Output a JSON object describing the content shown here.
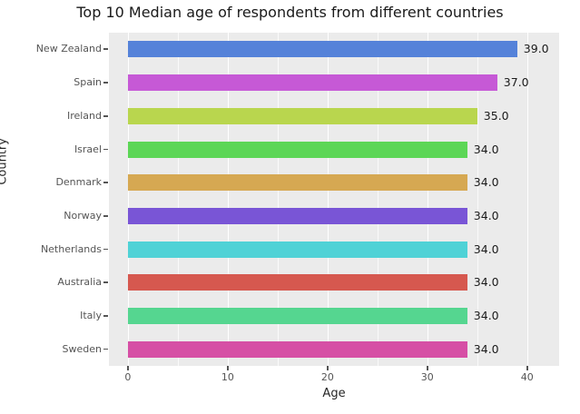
{
  "title": "Top 10 Median age of respondents from different countries",
  "chart_data": {
    "type": "bar",
    "orientation": "horizontal",
    "title": "Top 10 Median age of respondents from different countries",
    "xlabel": "Age",
    "ylabel": "Country",
    "categories": [
      "New Zealand",
      "Spain",
      "Ireland",
      "Israel",
      "Denmark",
      "Norway",
      "Netherlands",
      "Australia",
      "Italy",
      "Sweden"
    ],
    "values": [
      39.0,
      37.0,
      35.0,
      34.0,
      34.0,
      34.0,
      34.0,
      34.0,
      34.0,
      34.0
    ],
    "value_labels": [
      "39.0",
      "37.0",
      "35.0",
      "34.0",
      "34.0",
      "34.0",
      "34.0",
      "34.0",
      "34.0",
      "34.0"
    ],
    "bar_colors": [
      "#5582d9",
      "#c659d6",
      "#b9d64e",
      "#5cd656",
      "#d6a852",
      "#7955d6",
      "#4fd2d6",
      "#d6584f",
      "#55d690",
      "#d64fa5"
    ],
    "x_ticks": [
      0,
      10,
      20,
      30,
      40
    ],
    "x_tick_labels": [
      "0",
      "10",
      "20",
      "30",
      "40"
    ],
    "x_minor_step": 5,
    "xlim": [
      -1.9,
      43.2
    ],
    "grid": true,
    "legend": null,
    "plot_bg_color": "#ebebeb",
    "grid_color": "#ffffff",
    "tick_color": "#555555",
    "text_color": "#1a1a1a"
  }
}
